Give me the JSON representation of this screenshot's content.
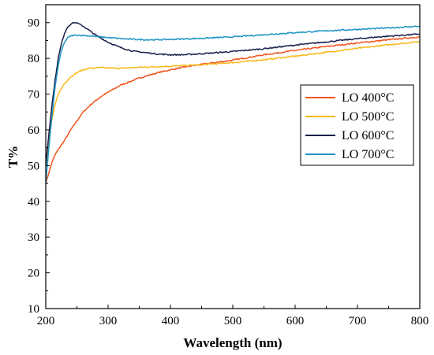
{
  "chart_data": {
    "type": "line",
    "title": "",
    "xlabel": "Wavelength (nm)",
    "ylabel": "T%",
    "xlim": [
      200,
      800
    ],
    "ylim": [
      10,
      95
    ],
    "xticks": [
      200,
      300,
      400,
      500,
      600,
      700,
      800
    ],
    "yticks": [
      10,
      20,
      30,
      40,
      50,
      60,
      70,
      80,
      90
    ],
    "grid": false,
    "legend_position": "right",
    "series": [
      {
        "name": "LO 400°C",
        "color": "#f0541e",
        "points": [
          [
            200,
            45
          ],
          [
            205,
            48
          ],
          [
            210,
            51
          ],
          [
            215,
            53
          ],
          [
            220,
            54.5
          ],
          [
            230,
            57
          ],
          [
            240,
            60
          ],
          [
            250,
            62.5
          ],
          [
            260,
            65
          ],
          [
            275,
            67.5
          ],
          [
            290,
            69.5
          ],
          [
            300,
            70.5
          ],
          [
            320,
            72.5
          ],
          [
            350,
            74.5
          ],
          [
            380,
            76
          ],
          [
            400,
            76.8
          ],
          [
            430,
            77.8
          ],
          [
            450,
            78.3
          ],
          [
            500,
            79.5
          ],
          [
            550,
            81
          ],
          [
            600,
            82.2
          ],
          [
            650,
            83.3
          ],
          [
            700,
            84.3
          ],
          [
            750,
            85.2
          ],
          [
            800,
            86
          ]
        ]
      },
      {
        "name": "LO 500°C",
        "color": "#f8b81a",
        "points": [
          [
            200,
            50
          ],
          [
            205,
            57
          ],
          [
            210,
            63
          ],
          [
            215,
            67
          ],
          [
            220,
            70
          ],
          [
            230,
            73
          ],
          [
            240,
            74.8
          ],
          [
            250,
            76
          ],
          [
            260,
            76.8
          ],
          [
            270,
            77.2
          ],
          [
            290,
            77.4
          ],
          [
            300,
            77.3
          ],
          [
            320,
            77.2
          ],
          [
            350,
            77.5
          ],
          [
            400,
            77.8
          ],
          [
            450,
            78.2
          ],
          [
            500,
            78.8
          ],
          [
            550,
            79.6
          ],
          [
            600,
            80.6
          ],
          [
            650,
            81.7
          ],
          [
            700,
            82.8
          ],
          [
            750,
            83.8
          ],
          [
            800,
            84.7
          ]
        ]
      },
      {
        "name": "LO 600°C",
        "color": "#19204a",
        "points": [
          [
            200,
            50
          ],
          [
            205,
            59
          ],
          [
            210,
            67
          ],
          [
            215,
            74
          ],
          [
            220,
            80
          ],
          [
            225,
            84
          ],
          [
            230,
            87
          ],
          [
            235,
            88.8
          ],
          [
            240,
            89.6
          ],
          [
            245,
            90
          ],
          [
            250,
            89.9
          ],
          [
            260,
            89
          ],
          [
            270,
            87.8
          ],
          [
            280,
            86.5
          ],
          [
            300,
            84.5
          ],
          [
            320,
            83
          ],
          [
            340,
            82
          ],
          [
            360,
            81.6
          ],
          [
            380,
            81.2
          ],
          [
            400,
            81
          ],
          [
            420,
            81
          ],
          [
            450,
            81.3
          ],
          [
            500,
            81.9
          ],
          [
            550,
            82.7
          ],
          [
            600,
            83.7
          ],
          [
            650,
            84.6
          ],
          [
            700,
            85.5
          ],
          [
            750,
            86.2
          ],
          [
            800,
            86.8
          ]
        ]
      },
      {
        "name": "LO 700°C",
        "color": "#1c93c4",
        "points": [
          [
            200,
            45
          ],
          [
            205,
            55
          ],
          [
            210,
            64
          ],
          [
            215,
            72
          ],
          [
            220,
            78
          ],
          [
            225,
            82
          ],
          [
            230,
            84.5
          ],
          [
            235,
            85.7
          ],
          [
            240,
            86.3
          ],
          [
            250,
            86.5
          ],
          [
            270,
            86.3
          ],
          [
            300,
            85.8
          ],
          [
            330,
            85.4
          ],
          [
            360,
            85.2
          ],
          [
            380,
            85.2
          ],
          [
            400,
            85.3
          ],
          [
            450,
            85.6
          ],
          [
            500,
            86
          ],
          [
            550,
            86.6
          ],
          [
            600,
            87.2
          ],
          [
            650,
            87.7
          ],
          [
            700,
            88.1
          ],
          [
            750,
            88.5
          ],
          [
            800,
            89
          ]
        ]
      }
    ]
  }
}
